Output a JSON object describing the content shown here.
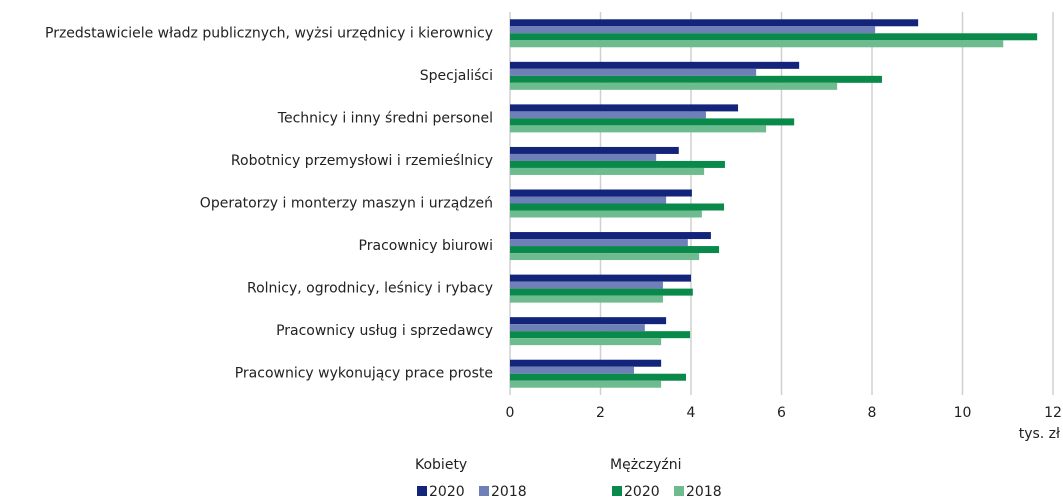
{
  "chart_data": {
    "type": "bar",
    "orientation": "horizontal",
    "categories": [
      "Przedstawiciele władz publicznych, wyżsi urzędnicy i kierownicy",
      "Specjaliści",
      "Technicy i inny średni personel",
      "Robotnicy przemysłowi i rzemieślnicy",
      "Operatorzy i monterzy maszyn i urządzeń",
      "Pracownicy biurowi",
      "Rolnicy, ogrodnicy, leśnicy i rybacy",
      "Pracownicy usług i sprzedawcy",
      "Pracownicy wykonujący prace proste"
    ],
    "series": [
      {
        "name": "2020",
        "color": "#13257a",
        "values": [
          9.02,
          6.39,
          5.04,
          3.73,
          4.02,
          4.44,
          4.0,
          3.45,
          3.34
        ]
      },
      {
        "name": "2018",
        "color": "#6f7fb8",
        "values": [
          8.07,
          5.44,
          4.33,
          3.23,
          3.45,
          3.93,
          3.38,
          2.98,
          2.74
        ]
      },
      {
        "name": "2020",
        "color": "#0a8a4a",
        "values": [
          11.65,
          8.22,
          6.28,
          4.75,
          4.73,
          4.62,
          4.04,
          3.98,
          3.89
        ]
      },
      {
        "name": "2018",
        "color": "#6dbb8f",
        "values": [
          10.9,
          7.23,
          5.66,
          4.29,
          4.24,
          4.18,
          3.38,
          3.34,
          3.34
        ]
      }
    ],
    "legend_groups": [
      "Kobiety",
      "Mężczyźni"
    ],
    "x_axis_label": "tys. zł",
    "xlim": [
      0,
      12
    ],
    "xticks": [
      0,
      2,
      4,
      6,
      8,
      10,
      12
    ],
    "grid": true
  }
}
